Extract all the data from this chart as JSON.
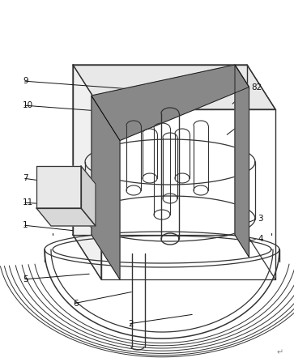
{
  "bg_color": "#ffffff",
  "lc": "#333333",
  "dc": "#111111",
  "gray": "#888888",
  "lgray": "#bbbbbb",
  "figsize": [
    3.63,
    4.47
  ],
  "dpi": 100
}
